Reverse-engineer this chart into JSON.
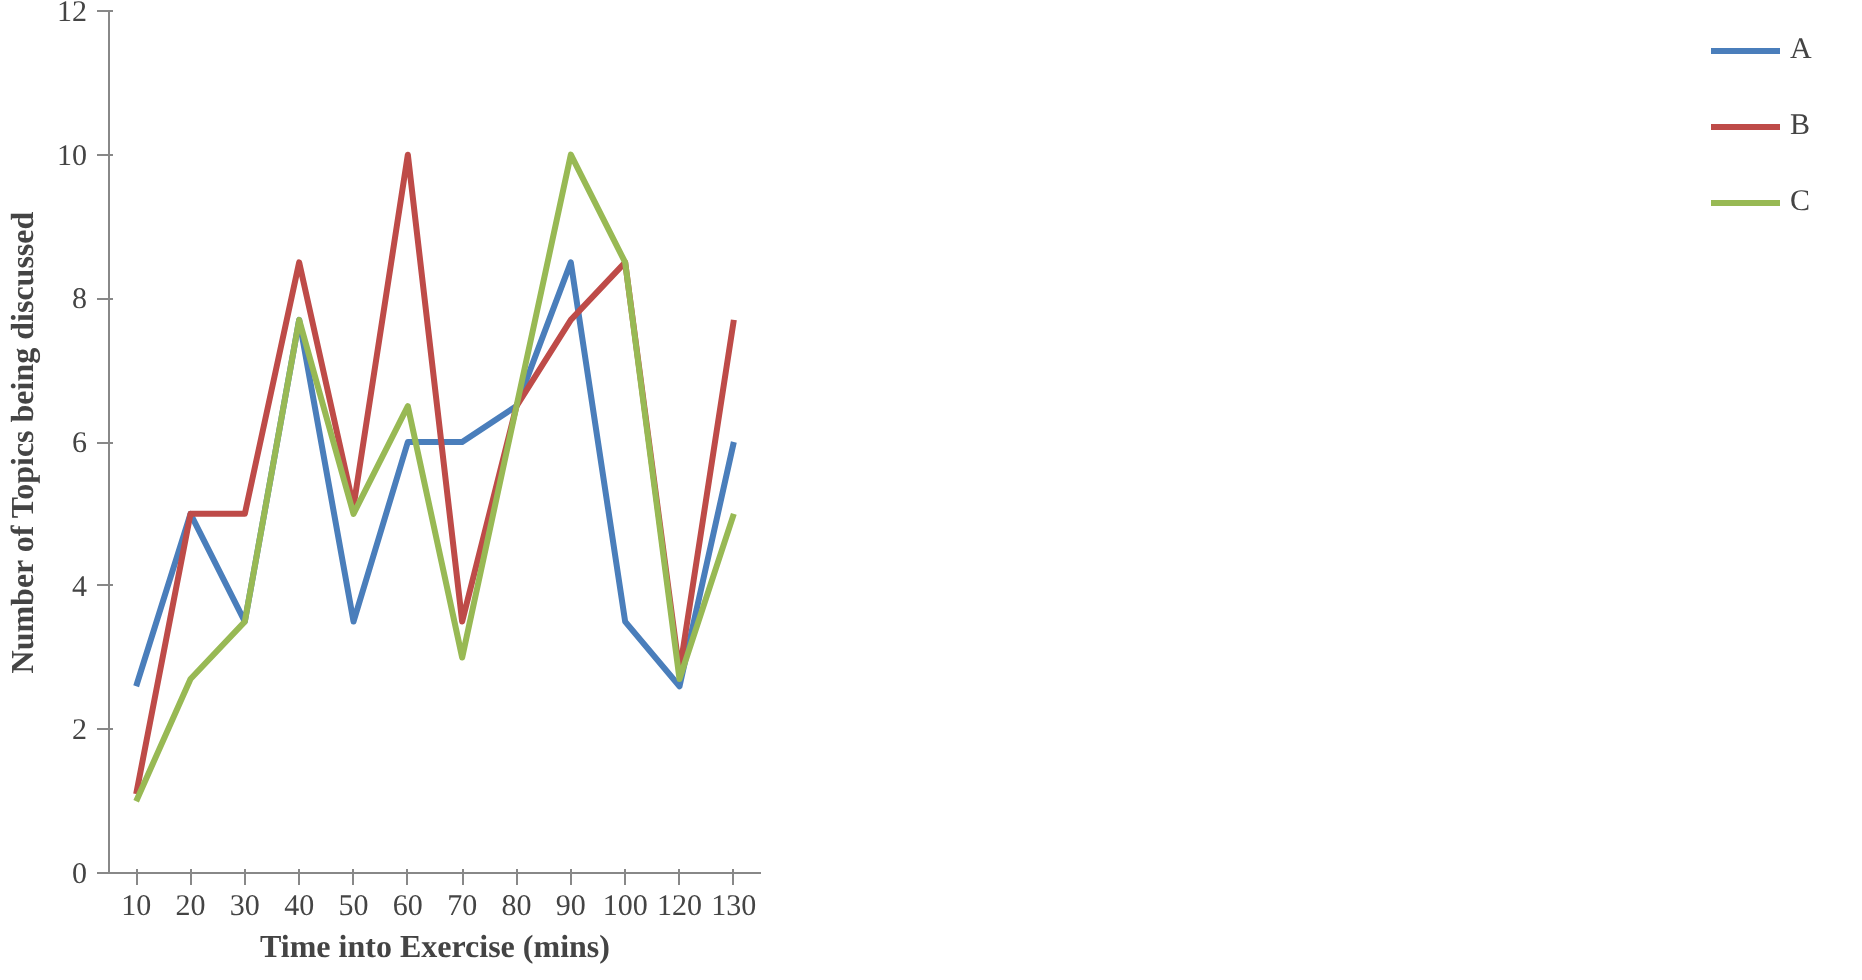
{
  "chart_data": {
    "type": "line",
    "xlabel": "Time into Exercise (mins)",
    "ylabel": "Number of Topics being discussed",
    "categories": [
      "10",
      "20",
      "30",
      "40",
      "50",
      "60",
      "70",
      "80",
      "90",
      "100",
      "120",
      "130"
    ],
    "series": [
      {
        "name": "A",
        "color": "#4a7ebb",
        "values": [
          2.6,
          5,
          3.5,
          7.7,
          3.5,
          6,
          6,
          6.5,
          8.5,
          3.5,
          2.6,
          6
        ]
      },
      {
        "name": "B",
        "color": "#be4b48",
        "values": [
          1.1,
          5,
          5,
          8.5,
          5.1,
          10,
          3.5,
          6.5,
          7.7,
          8.5,
          2.8,
          7.7
        ]
      },
      {
        "name": "C",
        "color": "#98b954",
        "values": [
          1.0,
          2.7,
          3.5,
          7.7,
          5.0,
          6.5,
          3.0,
          6.5,
          10,
          8.5,
          2.7,
          5.0
        ]
      }
    ],
    "ylim": [
      0,
      12
    ],
    "yticks": [
      0,
      2,
      4,
      6,
      8,
      10,
      12
    ],
    "grid": false,
    "legend": "right",
    "marker": "none",
    "line_style": "solid"
  }
}
